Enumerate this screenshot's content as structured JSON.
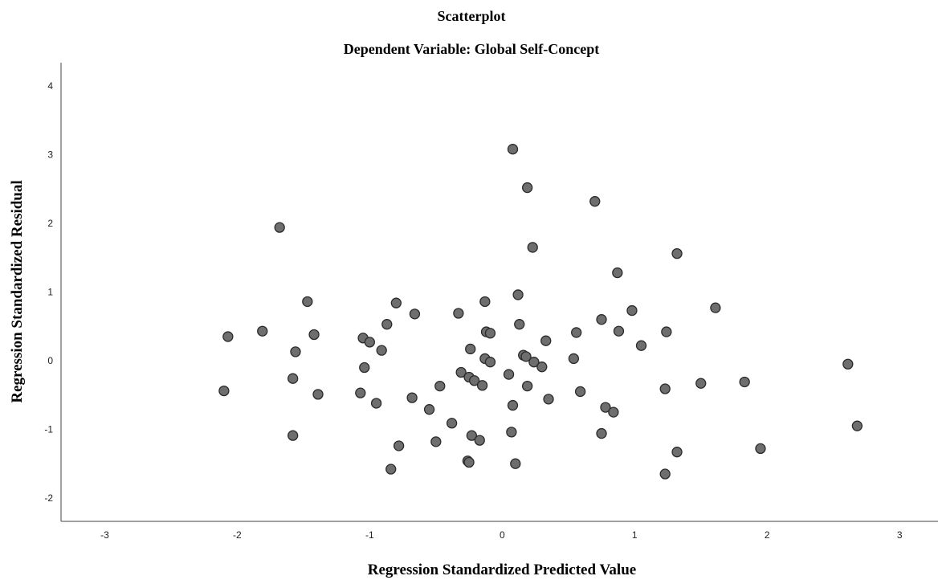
{
  "chart_data": {
    "type": "scatter",
    "title": "Scatterplot",
    "subtitle": "Dependent Variable: Global Self-Concept",
    "xlabel": "Regression Standardized Predicted Value",
    "ylabel": "Regression Standardized Residual",
    "color": "#6e6e6e",
    "x": [
      0.08,
      0.19,
      0.7,
      -1.68,
      0.23,
      1.32,
      0.87,
      0.12,
      -1.47,
      -0.8,
      -0.13,
      -0.66,
      -0.33,
      1.61,
      0.98,
      0.75,
      0.13,
      -0.87,
      -1.81,
      -2.07,
      -1.42,
      -0.12,
      -0.09,
      0.56,
      0.88,
      1.24,
      -1.05,
      -1.0,
      0.33,
      1.05,
      -0.91,
      -1.56,
      -0.24,
      0.16,
      0.18,
      -0.13,
      -0.09,
      0.24,
      0.54,
      2.61,
      -1.04,
      0.3,
      -0.31,
      0.05,
      -0.25,
      -0.21,
      -1.58,
      -0.15,
      0.19,
      -0.47,
      1.5,
      1.83,
      -2.1,
      -1.07,
      0.59,
      1.23,
      -1.39,
      -0.68,
      0.35,
      -0.95,
      0.08,
      -0.55,
      0.78,
      0.84,
      -0.38,
      2.68,
      -1.58,
      0.07,
      -0.23,
      0.75,
      -0.17,
      -0.5,
      -0.78,
      1.95,
      1.32,
      -0.26,
      -0.25,
      0.1,
      -0.84,
      1.23
    ],
    "values": [
      3.09,
      2.53,
      2.33,
      1.95,
      1.66,
      1.57,
      1.29,
      0.97,
      0.87,
      0.85,
      0.87,
      0.69,
      0.7,
      0.78,
      0.74,
      0.61,
      0.54,
      0.54,
      0.44,
      0.36,
      0.39,
      0.43,
      0.41,
      0.42,
      0.44,
      0.43,
      0.34,
      0.28,
      0.3,
      0.23,
      0.16,
      0.14,
      0.18,
      0.09,
      0.07,
      0.04,
      -0.01,
      -0.01,
      0.04,
      -0.04,
      -0.09,
      -0.08,
      -0.16,
      -0.19,
      -0.23,
      -0.28,
      -0.25,
      -0.35,
      -0.36,
      -0.36,
      -0.32,
      -0.3,
      -0.43,
      -0.46,
      -0.44,
      -0.4,
      -0.48,
      -0.53,
      -0.55,
      -0.61,
      -0.64,
      -0.7,
      -0.67,
      -0.74,
      -0.9,
      -0.94,
      -1.08,
      -1.03,
      -1.08,
      -1.05,
      -1.15,
      -1.17,
      -1.23,
      -1.27,
      -1.32,
      -1.45,
      -1.47,
      -1.49,
      -1.57,
      -1.64
    ],
    "xlim": [
      -3.33,
      3.29
    ],
    "ylim": [
      -2.33,
      4.35
    ],
    "xticks": [
      -3,
      -2,
      -1,
      0,
      1,
      2,
      3
    ],
    "yticks": [
      -2,
      -1,
      0,
      1,
      2,
      3,
      4
    ]
  }
}
